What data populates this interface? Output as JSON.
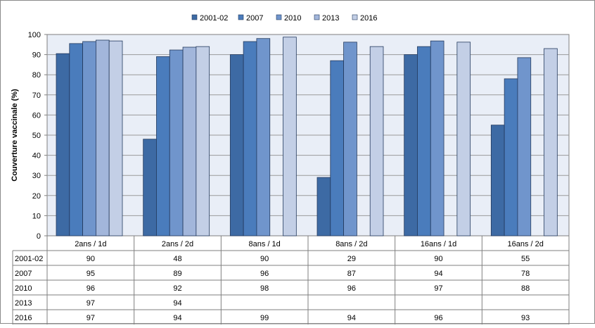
{
  "chart_data": {
    "type": "bar",
    "title": "",
    "xlabel": "",
    "ylabel": "Couverture vaccinale  (%)",
    "ylim": [
      0,
      100
    ],
    "yticks": [
      0,
      10,
      20,
      30,
      40,
      50,
      60,
      70,
      80,
      90,
      100
    ],
    "grid": true,
    "legend_position": "top-center",
    "categories": [
      "2ans / 1d",
      "2ans / 2d",
      "8ans / 1d",
      "8ans / 2d",
      "16ans / 1d",
      "16ans / 2d"
    ],
    "series": [
      {
        "name": "2001-02",
        "color": "#3d6aa4",
        "values": [
          90,
          48,
          90,
          29,
          90,
          55
        ],
        "bar_values": [
          90.5,
          48,
          90,
          29,
          90,
          55
        ]
      },
      {
        "name": "2007",
        "color": "#4a7cbc",
        "values": [
          95,
          89,
          96,
          87,
          94,
          78
        ],
        "bar_values": [
          95.5,
          89,
          96.5,
          87,
          94,
          78
        ]
      },
      {
        "name": "2010",
        "color": "#7095cc",
        "values": [
          96,
          92,
          98,
          96,
          97,
          88
        ],
        "bar_values": [
          96.5,
          92.3,
          98,
          96.2,
          96.8,
          88.5
        ]
      },
      {
        "name": "2013",
        "color": "#a2b6db",
        "values": [
          97,
          94,
          null,
          null,
          null,
          null
        ],
        "bar_values": [
          97.2,
          93.7,
          null,
          null,
          null,
          null
        ]
      },
      {
        "name": "2016",
        "color": "#c3cfe6",
        "values": [
          97,
          94,
          99,
          94,
          96,
          93
        ],
        "bar_values": [
          96.8,
          94,
          98.7,
          94,
          96.2,
          93
        ]
      }
    ]
  }
}
